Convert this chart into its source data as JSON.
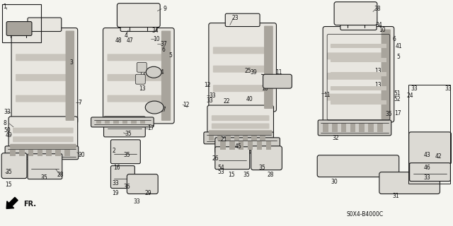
{
  "bg_color": "#f5f5f0",
  "line_color": "#1a1a1a",
  "text_color": "#111111",
  "fig_width": 6.4,
  "fig_height": 3.2,
  "dpi": 100,
  "diagram_code": "S0X4-B4000C",
  "seat_fill": "#e8e6e0",
  "seat_stripe": "#c8c4bc",
  "metal_fill": "#d0cec8",
  "dark_fill": "#a8a49c",
  "bracket_fill": "#dcdad4"
}
